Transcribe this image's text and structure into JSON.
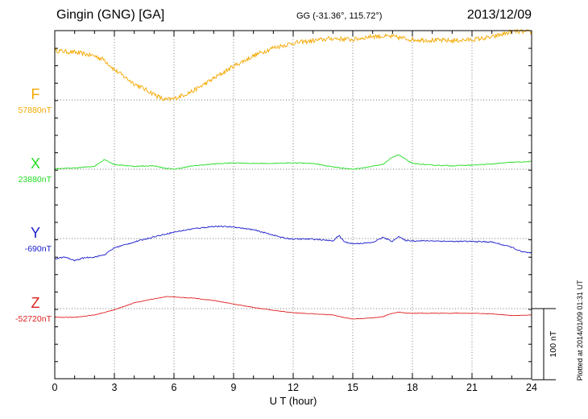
{
  "header": {
    "station": "Gingin (GNG)  [GA]",
    "coords": "GG (-31.36°, 115.72°)",
    "date": "2013/12/09"
  },
  "plotted_note": "Plotted at 2014/01/09 01:31  UT",
  "chart_data": {
    "type": "line",
    "xlabel": "U T (hour)",
    "xlim": [
      0,
      24
    ],
    "xticks": [
      0,
      3,
      6,
      9,
      12,
      15,
      18,
      21,
      24
    ],
    "xtick_labels": [
      "0",
      "3",
      "6",
      "9",
      "12",
      "15",
      "18",
      "21",
      "24"
    ],
    "scale_bar": {
      "label": "100 nT",
      "value": 100
    },
    "grid": true,
    "series": [
      {
        "name": "F",
        "baseline_label": "57880nT",
        "baseline": 57880,
        "color": "#f5a800",
        "noise": 8,
        "x": [
          0,
          1,
          2,
          2.5,
          3,
          4,
          5,
          5.5,
          6,
          7,
          8,
          9,
          10,
          11,
          12,
          13,
          14,
          15,
          16,
          17,
          18,
          19,
          20,
          21,
          22,
          23,
          24
        ],
        "y": [
          85,
          82,
          76,
          69,
          52,
          28,
          10,
          0,
          2,
          16,
          37,
          58,
          76,
          90,
          98,
          102,
          106,
          104,
          110,
          109,
          104,
          103,
          102,
          104,
          108,
          118,
          117
        ]
      },
      {
        "name": "X",
        "baseline_label": "23880nT",
        "baseline": 23880,
        "color": "#22dd22",
        "noise": 1.5,
        "x": [
          0,
          1,
          2,
          2.5,
          3,
          4,
          5,
          5.5,
          6,
          7,
          8,
          9,
          10,
          11,
          12,
          13,
          14,
          15,
          16,
          16.5,
          17,
          17.3,
          17.8,
          18,
          19,
          20,
          21,
          22,
          23,
          24
        ],
        "y": [
          1,
          2,
          5,
          17,
          8,
          5,
          6,
          2,
          0,
          6,
          9,
          11,
          10,
          10,
          11,
          10,
          4,
          0,
          5,
          8,
          21,
          25,
          14,
          10,
          7,
          6,
          7,
          9,
          12,
          13
        ]
      },
      {
        "name": "Y",
        "baseline_label": "-690nT",
        "baseline": -690,
        "color": "#1a1acc",
        "noise": 2,
        "x": [
          0,
          0.5,
          1,
          1.5,
          2,
          2.5,
          3,
          4,
          5,
          6,
          7,
          8,
          9,
          10,
          11,
          11.5,
          12,
          13,
          14,
          14.3,
          14.6,
          15,
          16,
          16.5,
          17,
          17.3,
          17.6,
          18,
          19,
          20,
          21,
          22,
          23,
          23.5,
          24
        ],
        "y": [
          -35,
          -32,
          -38,
          -33,
          -32,
          -28,
          -16,
          -6,
          3,
          11,
          17,
          21,
          20,
          15,
          6,
          1,
          -1,
          -1,
          -4,
          5,
          -6,
          -9,
          -7,
          2,
          -5,
          4,
          -3,
          -4,
          -4,
          -5,
          -5,
          -6,
          -15,
          -23,
          -25
        ]
      },
      {
        "name": "Z",
        "baseline_label": "-52720nT",
        "baseline": -52720,
        "color": "#e02020",
        "noise": 0.8,
        "x": [
          0,
          1,
          2,
          3,
          4,
          5,
          5.7,
          6,
          7,
          8,
          9,
          10,
          11,
          12,
          13,
          14,
          14.5,
          15,
          16,
          16.5,
          17,
          17.3,
          17.8,
          18,
          19,
          20,
          21,
          22,
          23,
          24
        ],
        "y": [
          -15,
          -15,
          -11,
          -2,
          10,
          17,
          21,
          20,
          18,
          14,
          8,
          2,
          -3,
          -7,
          -9,
          -11,
          -15,
          -18,
          -16,
          -14,
          -8,
          -6,
          -8,
          -8,
          -8,
          -8,
          -8,
          -9,
          -12,
          -11
        ]
      }
    ]
  }
}
